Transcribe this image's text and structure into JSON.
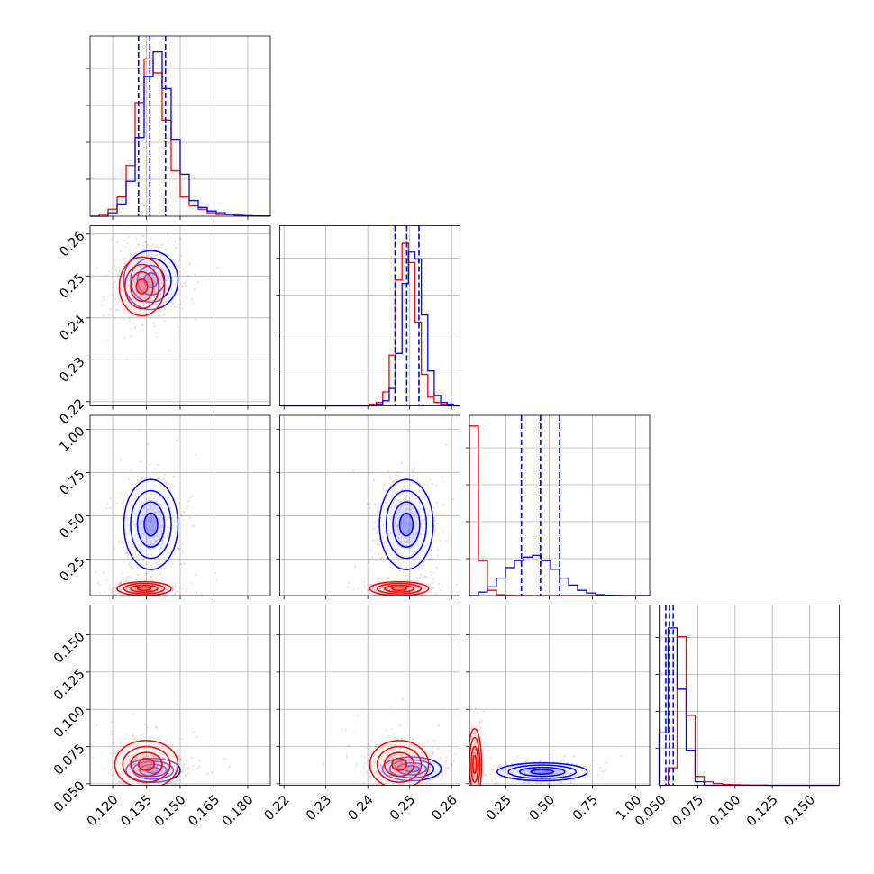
{
  "chart_data": {
    "type": "corner",
    "title": "",
    "colors": {
      "red": "#ff0000",
      "blue": "#0000ff"
    },
    "grid": true,
    "parameters": [
      {
        "range": [
          0.11,
          0.19
        ],
        "ticks": [
          0.12,
          0.135,
          0.15,
          0.165,
          0.18
        ],
        "tick_labels": [
          "0.120",
          "0.135",
          "0.150",
          "0.165",
          "0.180"
        ],
        "quantiles_blue": [
          0.1315,
          0.1365,
          0.1435
        ]
      },
      {
        "range": [
          0.219,
          0.262
        ],
        "ticks": [
          0.22,
          0.23,
          0.24,
          0.25,
          0.26
        ],
        "tick_labels": [
          "0.22",
          "0.23",
          "0.24",
          "0.25",
          "0.26"
        ],
        "quantiles_blue": [
          0.2465,
          0.2493,
          0.2522
        ]
      },
      {
        "range": [
          0.04,
          1.08
        ],
        "ticks": [
          0.25,
          0.5,
          0.75,
          1.0
        ],
        "tick_labels": [
          "0.25",
          "0.50",
          "0.75",
          "1.00"
        ],
        "quantiles_blue": [
          0.34,
          0.45,
          0.56
        ]
      },
      {
        "range": [
          0.049,
          0.17
        ],
        "ticks": [
          0.05,
          0.075,
          0.1,
          0.125,
          0.15
        ],
        "tick_labels": [
          "0.050",
          "0.075",
          "0.100",
          "0.125",
          "0.150"
        ],
        "quantiles_blue": [
          0.0535,
          0.056,
          0.0585
        ]
      }
    ],
    "histograms": [
      {
        "red": [
          0.0,
          0.01,
          0.04,
          0.11,
          0.29,
          0.65,
          0.9,
          0.82,
          0.55,
          0.26,
          0.11,
          0.06,
          0.04,
          0.02,
          0.01,
          0.01,
          0.005,
          0.003,
          0.002,
          0.001
        ],
        "blue": [
          0.0,
          0.0,
          0.02,
          0.07,
          0.2,
          0.45,
          0.8,
          0.94,
          0.73,
          0.44,
          0.24,
          0.09,
          0.05,
          0.03,
          0.02,
          0.01,
          0.005,
          0.003,
          0.002,
          0.001
        ]
      },
      {
        "red": [
          0.0,
          0.0,
          0.0,
          0.0,
          0.0,
          0.0,
          0.0,
          0.0,
          0.0,
          0.0,
          0.0,
          0.0,
          0.0,
          0.0,
          0.01,
          0.02,
          0.08,
          0.29,
          0.72,
          0.93,
          0.82,
          0.48,
          0.18,
          0.05,
          0.02,
          0.01,
          0.0,
          0.0
        ],
        "blue": [
          0.0,
          0.0,
          0.0,
          0.0,
          0.0,
          0.0,
          0.0,
          0.0,
          0.0,
          0.0,
          0.0,
          0.0,
          0.0,
          0.0,
          0.0,
          0.01,
          0.03,
          0.1,
          0.3,
          0.7,
          0.88,
          0.84,
          0.52,
          0.2,
          0.06,
          0.02,
          0.01,
          0.0
        ]
      },
      {
        "red": [
          0.97,
          0.2,
          0.03,
          0.005,
          0.001,
          0,
          0,
          0,
          0,
          0,
          0,
          0,
          0,
          0,
          0,
          0,
          0,
          0,
          0,
          0
        ],
        "blue": [
          0.0,
          0.02,
          0.05,
          0.1,
          0.16,
          0.2,
          0.22,
          0.23,
          0.2,
          0.15,
          0.1,
          0.06,
          0.03,
          0.015,
          0.005,
          0.002,
          0.001,
          0,
          0,
          0
        ]
      },
      {
        "red": [
          0.0,
          0.1,
          0.85,
          0.4,
          0.05,
          0.02,
          0.01,
          0.005,
          0.003,
          0.002,
          0.001,
          0.001,
          0,
          0,
          0,
          0,
          0,
          0,
          0,
          0
        ],
        "blue": [
          0.3,
          0.9,
          0.55,
          0.2,
          0.02,
          0.0,
          0,
          0,
          0,
          0,
          0,
          0,
          0,
          0,
          0,
          0,
          0,
          0,
          0,
          0
        ]
      }
    ],
    "samples": [
      {
        "row": 1,
        "col": 0,
        "red": {
          "mean": [
            0.133,
            0.2475
          ],
          "sd": [
            0.005,
            0.0035
          ]
        },
        "blue": {
          "mean": [
            0.137,
            0.249
          ],
          "sd": [
            0.006,
            0.0035
          ]
        }
      },
      {
        "row": 2,
        "col": 0,
        "red": {
          "mean": [
            0.134,
            0.08
          ],
          "sd": [
            0.006,
            0.02
          ]
        },
        "blue": {
          "mean": [
            0.137,
            0.45
          ],
          "sd": [
            0.006,
            0.13
          ]
        }
      },
      {
        "row": 2,
        "col": 1,
        "red": {
          "mean": [
            0.2475,
            0.08
          ],
          "sd": [
            0.0035,
            0.02
          ]
        },
        "blue": {
          "mean": [
            0.2492,
            0.45
          ],
          "sd": [
            0.0032,
            0.13
          ]
        }
      },
      {
        "row": 3,
        "col": 0,
        "red": {
          "mean": [
            0.135,
            0.063
          ],
          "sd": [
            0.007,
            0.008
          ]
        },
        "blue": {
          "mean": [
            0.138,
            0.059
          ],
          "sd": [
            0.006,
            0.004
          ]
        }
      },
      {
        "row": 3,
        "col": 1,
        "red": {
          "mean": [
            0.2475,
            0.063
          ],
          "sd": [
            0.0035,
            0.008
          ]
        },
        "blue": {
          "mean": [
            0.2505,
            0.06
          ],
          "sd": [
            0.0035,
            0.004
          ]
        }
      },
      {
        "row": 3,
        "col": 2,
        "red": {
          "mean": [
            0.07,
            0.063
          ],
          "sd": [
            0.02,
            0.012
          ]
        },
        "blue": {
          "mean": [
            0.46,
            0.058
          ],
          "sd": [
            0.13,
            0.003
          ]
        }
      }
    ]
  }
}
